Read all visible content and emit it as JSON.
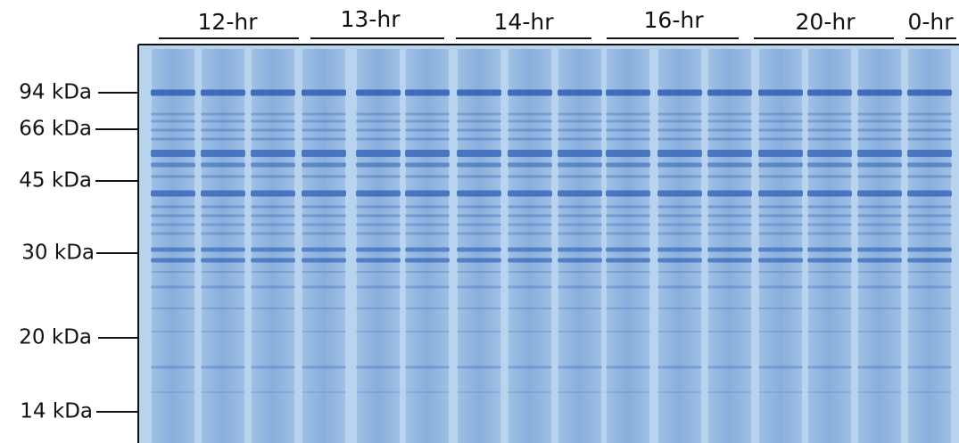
{
  "lane_groups": [
    {
      "label": "12-hr"
    },
    {
      "label": "13-hr"
    },
    {
      "label": "14-hr"
    },
    {
      "label": "16-hr"
    },
    {
      "label": "20-hr"
    },
    {
      "label": "0-hr"
    }
  ],
  "markers": [
    {
      "label": "94 kDa"
    },
    {
      "label": "66 kDa"
    },
    {
      "label": "45 kDa"
    },
    {
      "label": "30 kDa"
    },
    {
      "label": "20 kDa"
    },
    {
      "label": "14 kDa"
    }
  ]
}
